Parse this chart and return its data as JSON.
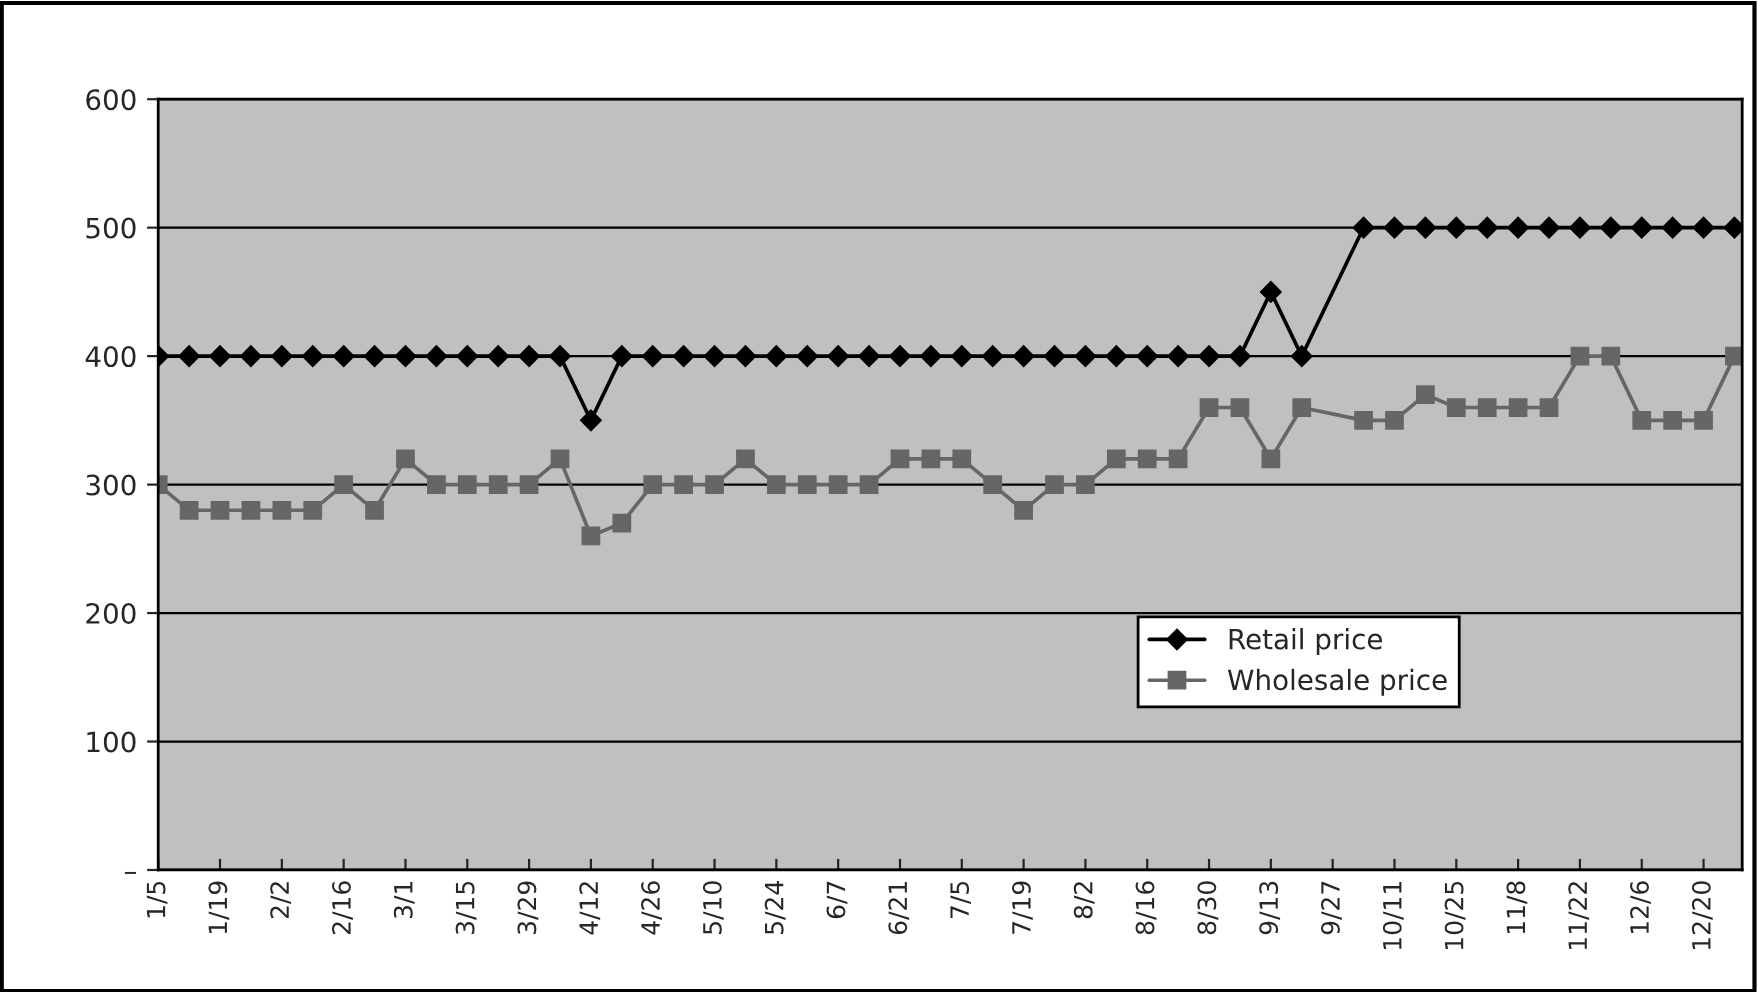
{
  "chart_data": {
    "type": "line",
    "categories": [
      "1/5",
      null,
      "1/19",
      null,
      "2/2",
      null,
      "2/16",
      null,
      "3/1",
      null,
      "3/15",
      null,
      "3/29",
      null,
      "4/12",
      null,
      "4/26",
      null,
      "5/10",
      null,
      "5/24",
      null,
      "6/7",
      null,
      "6/21",
      null,
      "7/5",
      null,
      "7/19",
      null,
      "8/2",
      null,
      "8/16",
      null,
      "8/30",
      null,
      "9/13",
      null,
      "9/27",
      null,
      "10/11",
      null,
      "10/25",
      null,
      "11/8",
      null,
      "11/22",
      null,
      "12/6",
      null,
      "12/20",
      null
    ],
    "series": [
      {
        "name": "Retail price",
        "color": "#000000",
        "marker": "diamond",
        "values": [
          400,
          400,
          400,
          400,
          400,
          400,
          400,
          400,
          400,
          400,
          400,
          400,
          400,
          400,
          350,
          400,
          400,
          400,
          400,
          400,
          400,
          400,
          400,
          400,
          400,
          400,
          400,
          400,
          400,
          400,
          400,
          400,
          400,
          400,
          400,
          400,
          450,
          400,
          null,
          500,
          500,
          500,
          500,
          500,
          500,
          500,
          500,
          500,
          500,
          500,
          500,
          500
        ]
      },
      {
        "name": "Wholesale price",
        "color": "#666666",
        "marker": "square",
        "values": [
          300,
          280,
          280,
          280,
          280,
          280,
          300,
          280,
          320,
          300,
          300,
          300,
          300,
          320,
          260,
          270,
          300,
          300,
          300,
          320,
          300,
          300,
          300,
          300,
          320,
          320,
          320,
          300,
          280,
          300,
          300,
          320,
          320,
          320,
          360,
          360,
          320,
          360,
          null,
          350,
          350,
          370,
          360,
          360,
          360,
          360,
          400,
          400,
          350,
          350,
          350,
          400
        ]
      }
    ],
    "ylim": [
      0,
      600
    ],
    "yticks": [
      {
        "value": 0,
        "label": "–"
      },
      100,
      200,
      300,
      400,
      500,
      600
    ],
    "grid": "y",
    "legend": "bottom right"
  }
}
